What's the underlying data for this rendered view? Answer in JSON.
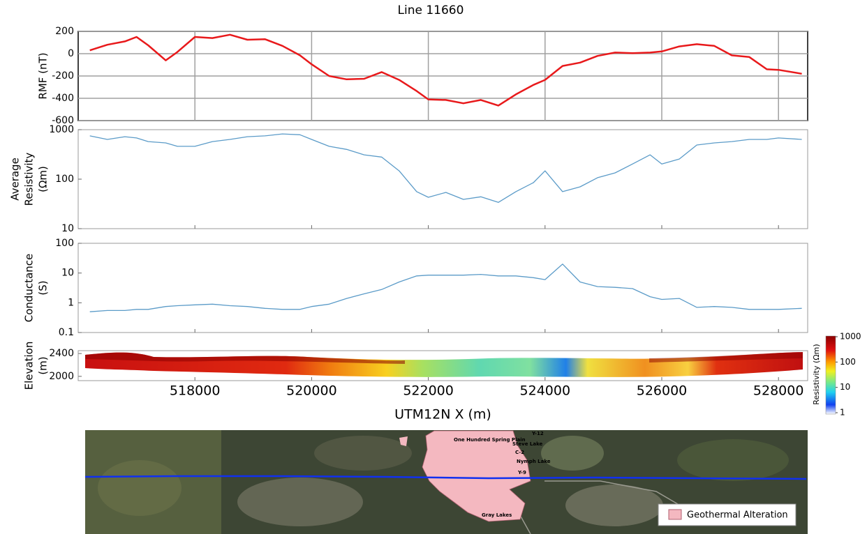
{
  "chart_data": [
    {
      "type": "line",
      "title": "Line 11660",
      "ylabel": [
        "RMF (nT)"
      ],
      "color": "#e8191b",
      "grid": true,
      "log": false,
      "xlim": [
        516000,
        528500
      ],
      "xticks": [
        518000,
        520000,
        522000,
        524000,
        526000,
        528000
      ],
      "ylim": [
        -600,
        200
      ],
      "yticks": [
        -600,
        -400,
        -200,
        0,
        200
      ],
      "x": [
        516200,
        516500,
        516800,
        517000,
        517200,
        517500,
        517700,
        518000,
        518300,
        518600,
        518900,
        519200,
        519500,
        519800,
        520000,
        520300,
        520600,
        520900,
        521200,
        521500,
        521800,
        522000,
        522300,
        522600,
        522900,
        523200,
        523500,
        523800,
        524000,
        524300,
        524600,
        524900,
        525200,
        525500,
        525800,
        526000,
        526300,
        526600,
        526900,
        527200,
        527500,
        527800,
        528000,
        528400
      ],
      "values": [
        30,
        80,
        110,
        150,
        75,
        -60,
        15,
        150,
        140,
        170,
        125,
        130,
        70,
        -15,
        -95,
        -200,
        -230,
        -225,
        -165,
        -235,
        -335,
        -410,
        -415,
        -445,
        -415,
        -465,
        -365,
        -280,
        -235,
        -110,
        -80,
        -20,
        10,
        5,
        10,
        20,
        65,
        85,
        70,
        -15,
        -30,
        -140,
        -145,
        -180
      ]
    },
    {
      "type": "line",
      "ylabel": [
        "Average",
        "Resistivity",
        "(Ωm)"
      ],
      "color": "#5b9bc8",
      "grid": false,
      "log": true,
      "xlim": [
        516000,
        528500
      ],
      "xticks": [
        518000,
        520000,
        522000,
        524000,
        526000,
        528000
      ],
      "ylim": [
        10,
        1000
      ],
      "yticks": [
        10,
        100,
        1000
      ],
      "x": [
        516200,
        516500,
        516800,
        517000,
        517200,
        517500,
        517700,
        518000,
        518300,
        518600,
        518900,
        519200,
        519500,
        519800,
        520000,
        520300,
        520600,
        520900,
        521200,
        521500,
        521800,
        522000,
        522300,
        522600,
        522900,
        523200,
        523500,
        523800,
        524000,
        524300,
        524600,
        524900,
        525200,
        525500,
        525800,
        526000,
        526300,
        526600,
        526900,
        527200,
        527500,
        527800,
        528000,
        528400
      ],
      "values": [
        750,
        635,
        720,
        680,
        575,
        540,
        460,
        460,
        575,
        635,
        720,
        750,
        820,
        790,
        635,
        460,
        400,
        310,
        280,
        147,
        56,
        43,
        54,
        39,
        44,
        34,
        56,
        85,
        147,
        56,
        70,
        107,
        134,
        203,
        310,
        203,
        255,
        490,
        540,
        575,
        635,
        635,
        680,
        635
      ]
    },
    {
      "type": "line",
      "ylabel": [
        "Conductance",
        "(S)"
      ],
      "color": "#5b9bc8",
      "grid": false,
      "log": true,
      "xlim": [
        516000,
        528500
      ],
      "xticks": [
        518000,
        520000,
        522000,
        524000,
        526000,
        528000
      ],
      "ylim": [
        0.1,
        100
      ],
      "yticks": [
        0.1,
        1,
        10,
        100
      ],
      "x": [
        516200,
        516500,
        516800,
        517000,
        517200,
        517500,
        517700,
        518000,
        518300,
        518600,
        518900,
        519200,
        519500,
        519800,
        520000,
        520300,
        520600,
        520900,
        521200,
        521500,
        521800,
        522000,
        522300,
        522600,
        522900,
        523200,
        523500,
        523800,
        524000,
        524300,
        524600,
        524900,
        525200,
        525500,
        525800,
        526000,
        526300,
        526600,
        526900,
        527200,
        527500,
        527800,
        528000,
        528400
      ],
      "values": [
        0.5,
        0.55,
        0.55,
        0.6,
        0.6,
        0.75,
        0.8,
        0.85,
        0.9,
        0.8,
        0.75,
        0.65,
        0.6,
        0.6,
        0.75,
        0.9,
        1.4,
        2,
        2.8,
        5,
        8,
        8.5,
        8.5,
        8.5,
        9,
        8,
        8,
        7,
        6,
        20,
        5,
        3.5,
        3.3,
        3,
        1.6,
        1.3,
        1.4,
        0.7,
        0.75,
        0.7,
        0.6,
        0.6,
        0.6,
        0.65
      ]
    },
    {
      "type": "section",
      "ylabel": [
        "Elevation",
        "(m)"
      ],
      "xlabel": "UTM12N X (m)",
      "grid": false,
      "log": false,
      "xlim": [
        516000,
        528500
      ],
      "xticks": [
        518000,
        520000,
        522000,
        524000,
        526000,
        528000
      ],
      "ylim": [
        1925,
        2450
      ],
      "yticks": [
        2000,
        2400
      ],
      "colorbar": {
        "label": "Resistivity (Ωm)",
        "lim": [
          1,
          1000
        ],
        "ticks": [
          1,
          10,
          100,
          1000
        ],
        "log": true
      }
    }
  ],
  "map": {
    "labels": [
      "One Hundred Spring Plain",
      "Y-12",
      "Steve Lake",
      "C-2",
      "Nymph Lake",
      "Y-9",
      "Gray Lakes"
    ],
    "legend": "Geothermal Alteration"
  }
}
